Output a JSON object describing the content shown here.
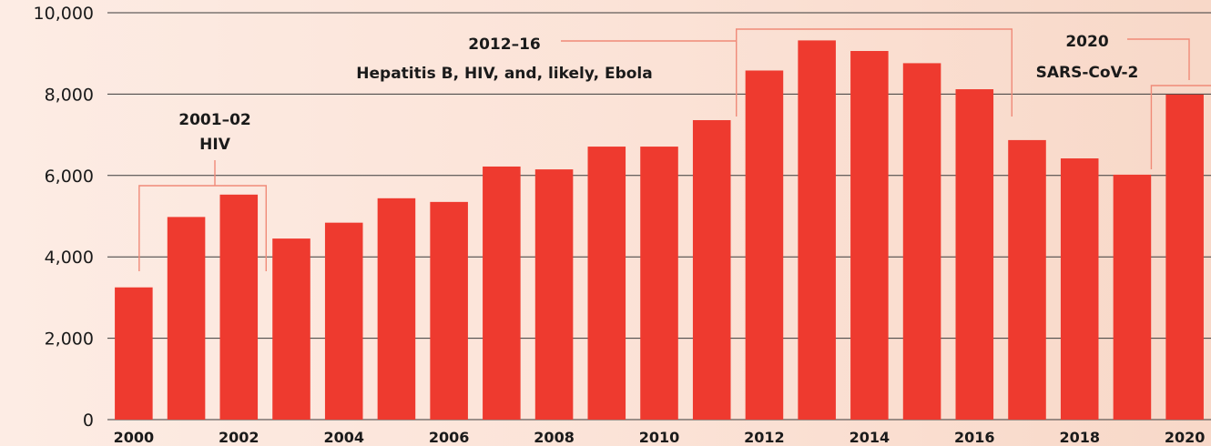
{
  "chart_data": {
    "type": "bar",
    "categories": [
      "2000",
      "2001",
      "2002",
      "2003",
      "2004",
      "2005",
      "2006",
      "2007",
      "2008",
      "2009",
      "2010",
      "2011",
      "2012",
      "2013",
      "2014",
      "2015",
      "2016",
      "2017",
      "2018",
      "2019",
      "2020"
    ],
    "values": [
      3250,
      4980,
      5530,
      4450,
      4840,
      5440,
      5350,
      6220,
      6150,
      6710,
      6710,
      7360,
      8580,
      9320,
      9060,
      8760,
      8120,
      6870,
      6420,
      6020,
      7990
    ],
    "x_tick_labels": [
      "2000",
      "2002",
      "2004",
      "2006",
      "2008",
      "2010",
      "2012",
      "2014",
      "2016",
      "2018",
      "2020"
    ],
    "y_tick_labels": [
      "0",
      "2,000",
      "4,000",
      "6,000",
      "8,000",
      "10,000"
    ],
    "y_ticks": [
      0,
      2000,
      4000,
      6000,
      8000,
      10000
    ],
    "ylim": [
      0,
      10000
    ],
    "grid": true,
    "title": "",
    "xlabel": "",
    "ylabel": "",
    "bar_color": "#ee3a2f",
    "annotations": [
      {
        "lines": [
          "2001–02",
          "HIV"
        ],
        "years": [
          "2000",
          "2002"
        ]
      },
      {
        "lines": [
          "2012–16",
          "Hepatitis B, HIV, and, likely, Ebola"
        ],
        "years": [
          "2011",
          "2016"
        ]
      },
      {
        "lines": [
          "2020",
          "SARS-CoV-2"
        ],
        "years": [
          "2019",
          "2020"
        ]
      }
    ]
  }
}
